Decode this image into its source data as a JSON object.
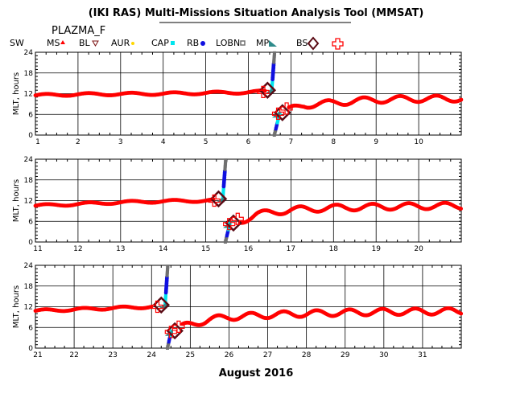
{
  "header": {
    "title": "(IKI RAS) Multi-Missions Situation Analysis Tool (MMSAT)",
    "mission": "PLAZMA_F"
  },
  "legend": [
    {
      "label": "SW",
      "symbol": "none",
      "color": "#000000"
    },
    {
      "label": "MS",
      "symbol": "triangle-up",
      "color": "#ff0000"
    },
    {
      "label": "BL",
      "symbol": "triangle-down",
      "color": "#7a1010"
    },
    {
      "label": "AUR",
      "symbol": "star",
      "color": "#ffd700"
    },
    {
      "label": "CAP",
      "symbol": "square",
      "color": "#00e5ee"
    },
    {
      "label": "RB",
      "symbol": "circle",
      "color": "#1010e0"
    },
    {
      "label": "LOBN",
      "symbol": "square-open",
      "color": "#707070"
    },
    {
      "label": "MP",
      "symbol": "triangle-fill",
      "color": "#2e8b8b"
    },
    {
      "label": "BS",
      "symbol": "diamond-open",
      "color": "#5a0a14"
    },
    {
      "label": "",
      "symbol": "cross-open",
      "color": "#ff0000"
    }
  ],
  "xlabel": "August 2016",
  "ylabel": "MLT, hours",
  "chart_data": [
    {
      "type": "scatter",
      "x_range": [
        1,
        11
      ],
      "x_ticks": [
        "1",
        "2",
        "3",
        "4",
        "5",
        "6",
        "7",
        "8",
        "9",
        "10"
      ],
      "y_range": [
        0,
        24
      ],
      "y_ticks": [
        "0",
        "6",
        "12",
        "18",
        "24"
      ],
      "grid": true,
      "solar_wind_mlt": [
        [
          1,
          11.5
        ],
        [
          2,
          11.8
        ],
        [
          3,
          11.9
        ],
        [
          4,
          12.0
        ],
        [
          5,
          12.2
        ],
        [
          6,
          12.4
        ],
        [
          6.4,
          12.6
        ]
      ],
      "magnetosheath_mlt": [
        [
          6.95,
          7.2
        ],
        [
          7.3,
          8.7
        ],
        [
          8,
          9.3
        ],
        [
          8.5,
          9.9
        ],
        [
          9,
          10.2
        ],
        [
          9.5,
          10.4
        ],
        [
          10,
          10.5
        ],
        [
          11,
          10.6
        ]
      ],
      "crossing": {
        "day": 6.55,
        "bs_in": 13.0,
        "bs_out": 6.5
      }
    },
    {
      "type": "scatter",
      "x_range": [
        11,
        21
      ],
      "x_ticks": [
        "11",
        "12",
        "13",
        "14",
        "15",
        "16",
        "17",
        "18",
        "19",
        "20"
      ],
      "y_range": [
        0,
        24
      ],
      "y_ticks": [
        "0",
        "6",
        "12",
        "18",
        "24"
      ],
      "grid": true,
      "solar_wind_mlt": [
        [
          11,
          10.5
        ],
        [
          12,
          11.0
        ],
        [
          13,
          11.5
        ],
        [
          14,
          11.8
        ],
        [
          15,
          12.0
        ],
        [
          15.2,
          12.1
        ]
      ],
      "magnetosheath_mlt": [
        [
          15.8,
          6.0
        ],
        [
          16.2,
          8.0
        ],
        [
          17,
          9.3
        ],
        [
          18,
          9.9
        ],
        [
          19,
          10.2
        ],
        [
          20,
          10.4
        ],
        [
          21,
          10.5
        ]
      ],
      "crossing": {
        "day": 15.4,
        "bs_in": 12.5,
        "bs_out": 5.5
      }
    },
    {
      "type": "scatter",
      "x_range": [
        21,
        32
      ],
      "x_ticks": [
        "21",
        "22",
        "23",
        "24",
        "25",
        "26",
        "27",
        "28",
        "29",
        "30",
        "31"
      ],
      "y_range": [
        0,
        24
      ],
      "y_ticks": [
        "0",
        "6",
        "12",
        "18",
        "24"
      ],
      "grid": true,
      "solar_wind_mlt": [
        [
          21,
          10.8
        ],
        [
          22,
          11.2
        ],
        [
          23,
          11.6
        ],
        [
          24,
          12.0
        ]
      ],
      "magnetosheath_mlt": [
        [
          24.8,
          6.2
        ],
        [
          25.5,
          8.3
        ],
        [
          26,
          9.0
        ],
        [
          27,
          9.6
        ],
        [
          28,
          10.0
        ],
        [
          29,
          10.3
        ],
        [
          30,
          10.5
        ],
        [
          31,
          10.6
        ],
        [
          32,
          10.7
        ]
      ],
      "crossing": {
        "day": 24.35,
        "bs_in": 12.5,
        "bs_out": 5.0
      }
    }
  ]
}
